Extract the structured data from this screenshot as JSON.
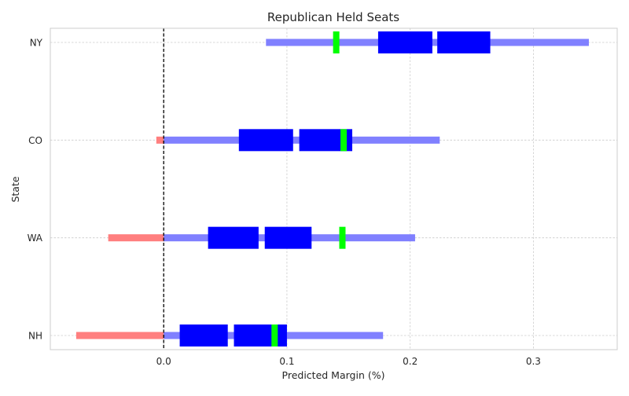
{
  "chart_data": {
    "type": "range-bar",
    "title": "Republican Held Seats",
    "xlabel": "Predicted Margin (%)",
    "ylabel": "State",
    "xlim": [
      -0.092,
      0.368
    ],
    "xticks": [
      0.0,
      0.1,
      0.2,
      0.3
    ],
    "xtick_labels": [
      "0.0",
      "0.1",
      "0.2",
      "0.3"
    ],
    "categories": [
      "NY",
      "CO",
      "WA",
      "NH"
    ],
    "grid": true,
    "zero_reference_line": 0.0,
    "colors": {
      "outer_range_positive": "#8080ff",
      "outer_range_negative": "#ff7f7f",
      "inner_interval": "#0000ff",
      "point_estimate": "#00ff00",
      "grid": "#cccccc",
      "frame": "#cccccc",
      "reference_line": "#000000"
    },
    "series": [
      {
        "category": "NY",
        "outer_range": [
          0.083,
          0.345
        ],
        "lower_interval": [
          0.174,
          0.218
        ],
        "upper_interval": [
          0.222,
          0.265
        ],
        "point_estimate": 0.14
      },
      {
        "category": "CO",
        "outer_range": [
          -0.006,
          0.224
        ],
        "lower_interval": [
          0.061,
          0.105
        ],
        "upper_interval": [
          0.11,
          0.153
        ],
        "point_estimate": 0.146
      },
      {
        "category": "WA",
        "outer_range": [
          -0.045,
          0.204
        ],
        "lower_interval": [
          0.036,
          0.077
        ],
        "upper_interval": [
          0.082,
          0.12
        ],
        "point_estimate": 0.145
      },
      {
        "category": "NH",
        "outer_range": [
          -0.071,
          0.178
        ],
        "lower_interval": [
          0.013,
          0.052
        ],
        "upper_interval": [
          0.057,
          0.1
        ],
        "point_estimate": 0.09
      }
    ]
  }
}
